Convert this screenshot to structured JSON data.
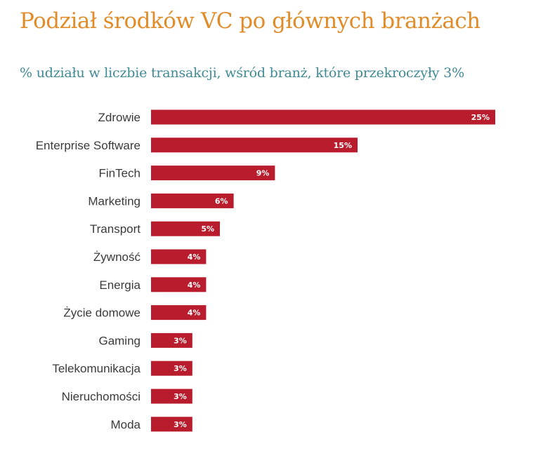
{
  "title": "Podział środków VC po głównych branżach",
  "subtitle": "% udziału w liczbie transakcji, wśród branż, które przekroczyły 3%",
  "colors": {
    "title": "#e08c2a",
    "subtitle": "#3f8a95",
    "bar": "#b91c2c",
    "label": "#3a3a3a",
    "value_label": "#ffffff"
  },
  "chart_data": {
    "type": "bar",
    "orientation": "horizontal",
    "categories": [
      "Zdrowie",
      "Enterprise Software",
      "FinTech",
      "Marketing",
      "Transport",
      "Żywność",
      "Energia",
      "Życie domowe",
      "Gaming",
      "Telekomunikacja",
      "Nieruchomości",
      "Moda"
    ],
    "values": [
      25,
      15,
      9,
      6,
      5,
      4,
      4,
      4,
      3,
      3,
      3,
      3
    ],
    "value_labels": [
      "25%",
      "15%",
      "9%",
      "6%",
      "5%",
      "4%",
      "4%",
      "4%",
      "3%",
      "3%",
      "3%",
      "3%"
    ],
    "title": "Podział środków VC po głównych branżach",
    "subtitle": "% udziału w liczbie transakcji, wśród branż, które przekroczyły 3%",
    "xlabel": "",
    "ylabel": "",
    "grid": false,
    "legend": "none"
  }
}
